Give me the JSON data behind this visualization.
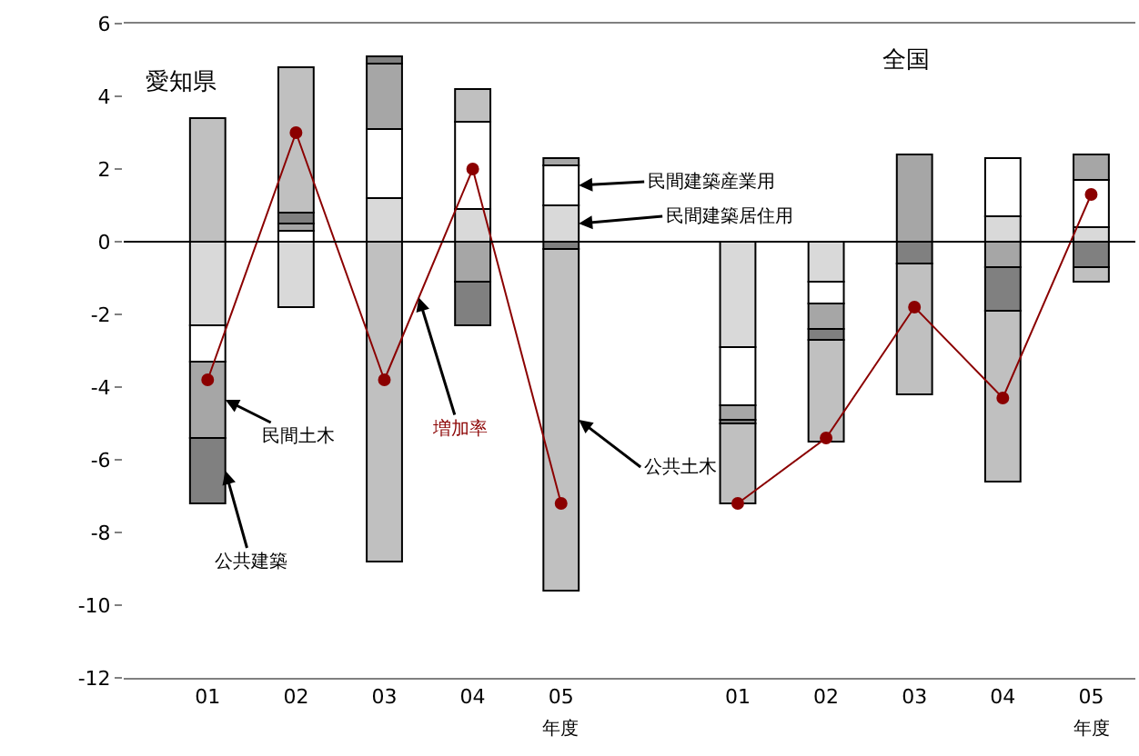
{
  "chart_data": {
    "type": "bar",
    "stacked": true,
    "xlabel": "年度",
    "categories": [
      "01",
      "02",
      "03",
      "04",
      "05",
      null,
      "01",
      "02",
      "03",
      "04",
      "05"
    ],
    "ylim": [
      -12,
      6
    ],
    "ref_lines": [
      {
        "axis": "y",
        "value": 0,
        "color": "#000000"
      }
    ],
    "yticks": [
      -12,
      -10,
      -8,
      -6,
      -4,
      -2,
      0,
      2,
      4,
      6
    ],
    "grid": false,
    "legend": "right",
    "series": [
      {
        "name": "民間建築居住用",
        "color": "#d9d9d9",
        "values": [
          -2.3,
          -1.8,
          1.2,
          0.9,
          1.0,
          null,
          -2.9,
          -1.1,
          null,
          0.7,
          0.4
        ]
      },
      {
        "name": "民間建築産業用",
        "color": "#ffffff",
        "values": [
          -1.0,
          0.3,
          1.9,
          2.4,
          1.1,
          null,
          -1.6,
          -0.6,
          null,
          1.6,
          1.3
        ]
      },
      {
        "name": "民間土木",
        "color": "#a6a6a6",
        "values": [
          -2.1,
          0.2,
          1.8,
          -1.1,
          0.2,
          null,
          -0.4,
          -0.7,
          2.4,
          -0.7,
          0.7
        ]
      },
      {
        "name": "公共建築",
        "color": "#808080",
        "values": [
          -1.8,
          0.3,
          0.2,
          -1.2,
          -0.2,
          null,
          -0.1,
          -0.3,
          -0.6,
          -1.2,
          -0.7
        ]
      },
      {
        "name": "公共土木",
        "color": "#c0c0c0",
        "values": [
          3.4,
          4.0,
          -8.8,
          0.9,
          -9.4,
          null,
          -2.2,
          -2.8,
          -3.6,
          -4.7,
          -0.4
        ]
      },
      {
        "name": "増加率",
        "type": "line",
        "color": "#8b0000",
        "marker": "circle",
        "values": [
          -3.8,
          3.0,
          -3.8,
          2.0,
          -7.2,
          null,
          -7.2,
          -5.4,
          -1.8,
          -4.3,
          1.3
        ]
      }
    ],
    "annotations": [
      "愛知県",
      "全国"
    ]
  }
}
